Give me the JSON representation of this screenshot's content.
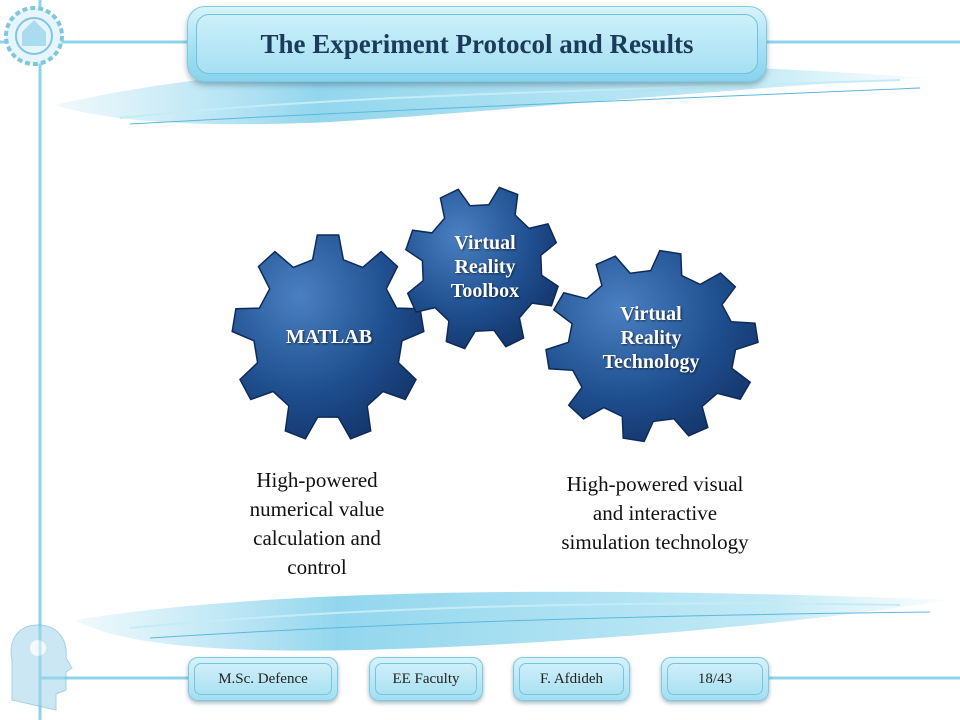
{
  "slide": {
    "title": "The Experiment Protocol and Results"
  },
  "gears": {
    "matlab": "MATLAB",
    "toolbox": [
      "Virtual",
      "Reality",
      "Toolbox"
    ],
    "technology": [
      "Virtual",
      "Reality",
      "Technology"
    ]
  },
  "descriptions": {
    "left": [
      "High-powered",
      "numerical value",
      "calculation and",
      "control"
    ],
    "right": [
      "High-powered visual",
      "and interactive",
      "simulation technology"
    ]
  },
  "footer": {
    "degree": "M.Sc. Defence",
    "faculty": "EE Faculty",
    "author": "F. Afdideh",
    "page": "18/43"
  },
  "colors": {
    "gear_fill": "#1f4f8f",
    "title_bg": "#a9e2f3",
    "title_text": "#1b3b5c",
    "accent": "#6fc7e3"
  }
}
